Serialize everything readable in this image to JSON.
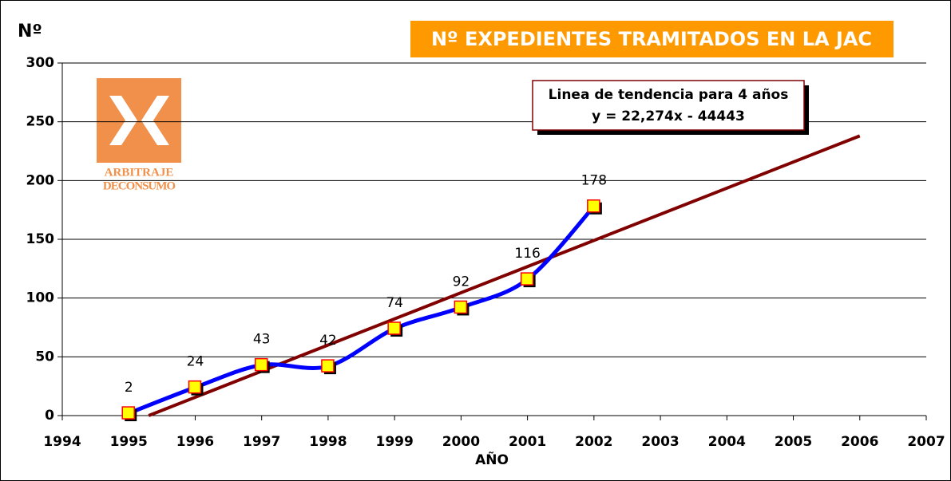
{
  "chart_data": {
    "type": "line",
    "title": "Nº EXPEDIENTES TRAMITADOS EN LA JAC",
    "y_label": "Nº",
    "x_label": "AÑO",
    "annotations": [
      "ARBITRAJE",
      "DECONSUMO",
      "Linea de tendencia para 4 años",
      "y = 22,274x - 44443"
    ],
    "x": [
      1995,
      1996,
      1997,
      1998,
      1999,
      2000,
      2001,
      2002
    ],
    "series": [
      {
        "color": "#0000ff",
        "values": [
          2,
          24,
          43,
          42,
          74,
          92,
          116,
          178
        ]
      },
      {
        "color": "#800000",
        "x": [
          1995.3,
          2006
        ],
        "values": [
          0,
          238
        ]
      }
    ],
    "xlim": [
      1994,
      2007
    ],
    "xticks": [
      1994,
      1995,
      1996,
      1997,
      1998,
      1999,
      2000,
      2001,
      2002,
      2003,
      2004,
      2005,
      2006,
      2007
    ],
    "ylim": [
      0,
      300
    ],
    "yticks": [
      0,
      50,
      100,
      150,
      200,
      250,
      300
    ],
    "grid": true
  }
}
